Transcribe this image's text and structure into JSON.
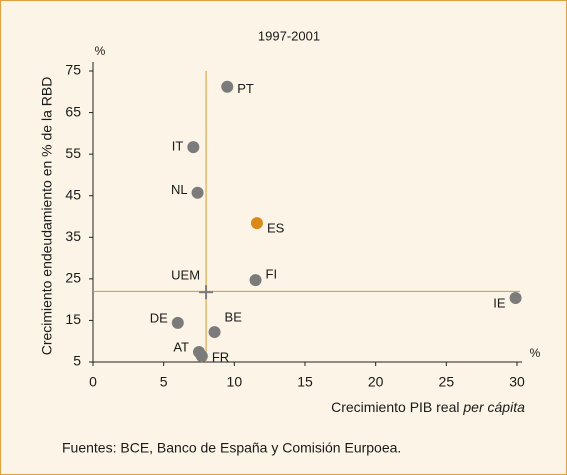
{
  "chart_data": {
    "type": "scatter",
    "title": "1997-2001",
    "ylabel": "Crecimiento endeudamiento en % de la RBD",
    "xlabel": [
      "Crecimiento PIB real",
      "per cápita"
    ],
    "yunit": "%",
    "xunit": "%",
    "xlim": [
      0,
      30
    ],
    "xticks": [
      0,
      5,
      10,
      15,
      20,
      25,
      30
    ],
    "ylim": [
      5,
      75
    ],
    "yticks": [
      5,
      15,
      25,
      35,
      45,
      55,
      65,
      75
    ],
    "vline": 8,
    "hline": 22,
    "line_color": "#d99a2b",
    "points": [
      {
        "label": "PT",
        "x": 9.5,
        "y": 71.2,
        "color": "#7b7b7b"
      },
      {
        "label": "IT",
        "x": 7.1,
        "y": 56.7,
        "color": "#7b7b7b"
      },
      {
        "label": "NL",
        "x": 7.4,
        "y": 45.7,
        "color": "#7b7b7b"
      },
      {
        "label": "ES",
        "x": 11.6,
        "y": 38.4,
        "color": "#d9891a"
      },
      {
        "label": "FI",
        "x": 11.5,
        "y": 24.7,
        "color": "#7b7b7b"
      },
      {
        "label": "UEM",
        "x": 8.0,
        "y": 21.8,
        "color": "#7b7b7b",
        "marker": "cross"
      },
      {
        "label": "IE",
        "x": 29.9,
        "y": 20.4,
        "color": "#7b7b7b"
      },
      {
        "label": "DE",
        "x": 6.0,
        "y": 14.4,
        "color": "#7b7b7b"
      },
      {
        "label": "BE",
        "x": 8.6,
        "y": 12.2,
        "color": "#7b7b7b"
      },
      {
        "label": "AT",
        "x": 7.5,
        "y": 7.4,
        "color": "#7b7b7b"
      },
      {
        "label": "FR",
        "x": 7.7,
        "y": 6.4,
        "color": "#7b7b7b"
      }
    ]
  },
  "footnote": "Fuentes: BCE, Banco de España y Comisión Eurpoea."
}
